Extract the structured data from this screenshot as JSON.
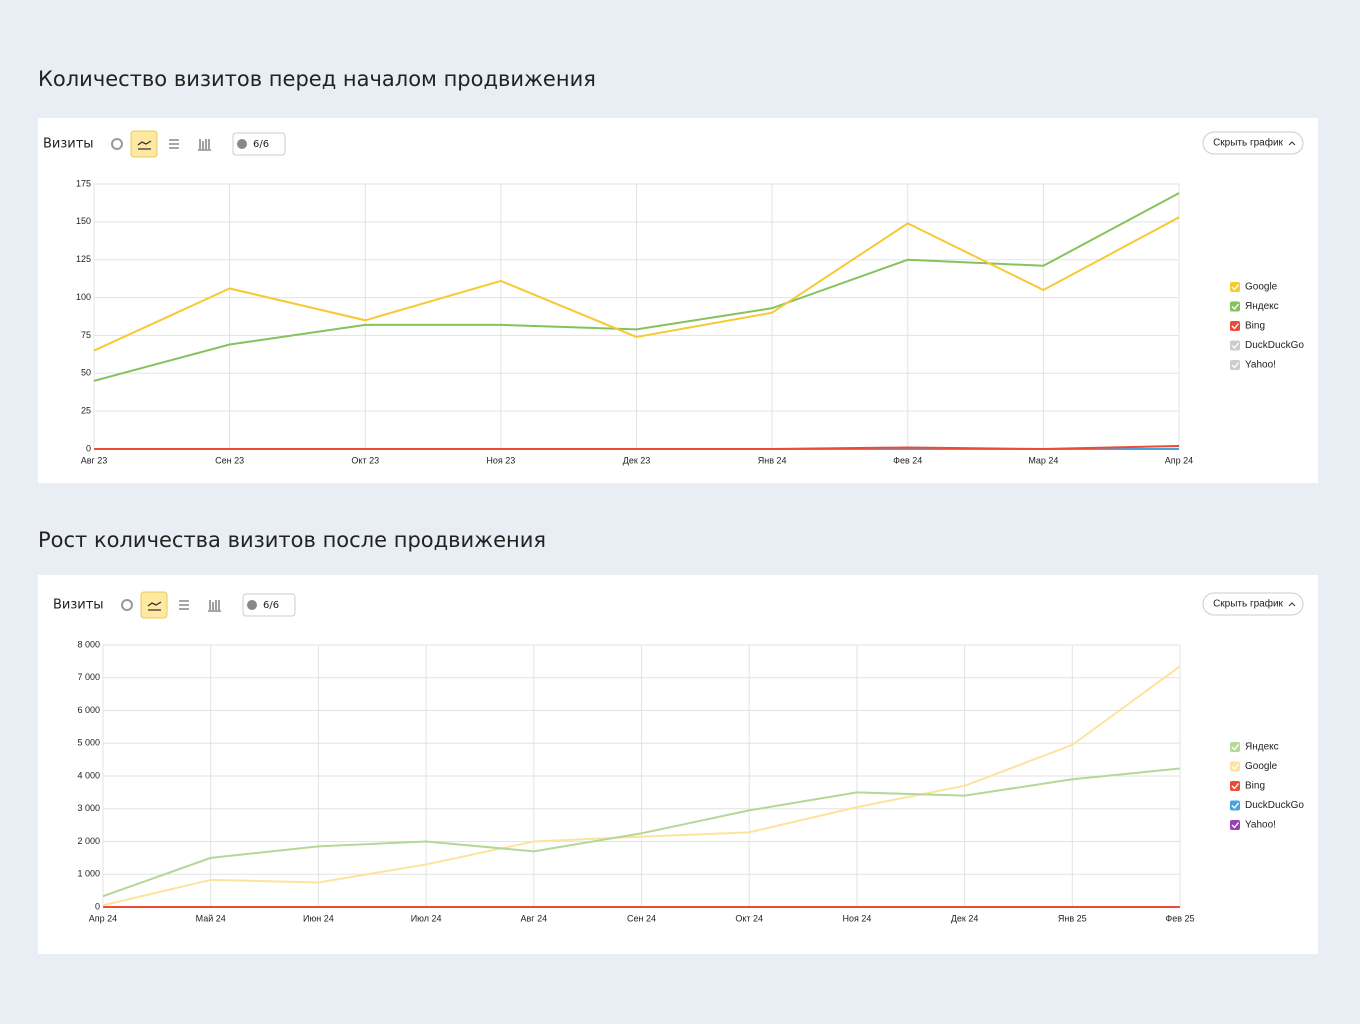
{
  "chart_data": [
    {
      "type": "line",
      "title": "Количество визитов перед началом продвижения",
      "toolbar_label": "Визиты",
      "filter_label": "6/6",
      "hide_button": "Скрыть график",
      "categories": [
        "Авг 23",
        "Сен 23",
        "Окт 23",
        "Ноя 23",
        "Дек 23",
        "Янв 24",
        "Фев 24",
        "Мар 24",
        "Апр 24"
      ],
      "series": [
        {
          "name": "Google",
          "color": "#f7c934",
          "values": [
            65,
            106,
            85,
            111,
            74,
            90,
            149,
            105,
            153
          ]
        },
        {
          "name": "Яндекс",
          "color": "#86c25a",
          "values": [
            45,
            69,
            82,
            82,
            79,
            93,
            125,
            121,
            169
          ]
        },
        {
          "name": "Bing",
          "color": "#ef4a36",
          "values": [
            0,
            0,
            0,
            0,
            0,
            0,
            1,
            0,
            2
          ]
        },
        {
          "name": "DuckDuckGo",
          "color": "#4aa3df",
          "values": [
            0,
            0,
            0,
            0,
            0,
            0,
            0,
            0,
            0
          ],
          "disabled": true
        },
        {
          "name": "Yahoo!",
          "color": "#9b3fb5",
          "values": [
            0,
            0,
            0,
            0,
            0,
            0,
            0,
            0,
            0
          ],
          "disabled": true
        }
      ],
      "ylim": [
        0,
        175
      ],
      "yticks": [
        0,
        25,
        50,
        75,
        100,
        125,
        150,
        175
      ],
      "grid": true,
      "legend": "right"
    },
    {
      "type": "line",
      "title": "Рост количества визитов после продвижения",
      "toolbar_label": "Визиты",
      "filter_label": "6/6",
      "hide_button": "Скрыть график",
      "categories": [
        "Апр 24",
        "Май 24",
        "Июн 24",
        "Июл 24",
        "Авг 24",
        "Сен 24",
        "Окт 24",
        "Ноя 24",
        "Дек 24",
        "Янв 25",
        "Фев 25"
      ],
      "series": [
        {
          "name": "Яндекс",
          "color": "#b3d897",
          "values": [
            330,
            1500,
            1850,
            2000,
            1700,
            2250,
            2950,
            3500,
            3400,
            3900,
            4230
          ]
        },
        {
          "name": "Google",
          "color": "#fde39c",
          "values": [
            50,
            830,
            750,
            1300,
            2000,
            2150,
            2280,
            3050,
            3700,
            4950,
            7350
          ]
        },
        {
          "name": "Bing",
          "color": "#ef4a36",
          "values": [
            0,
            0,
            0,
            0,
            0,
            0,
            0,
            0,
            0,
            0,
            0
          ]
        },
        {
          "name": "DuckDuckGo",
          "color": "#4aa3df",
          "values": [
            0,
            0,
            0,
            0,
            0,
            0,
            0,
            0,
            0,
            0,
            0
          ]
        },
        {
          "name": "Yahoo!",
          "color": "#9b3fb5",
          "values": [
            0,
            0,
            0,
            0,
            0,
            0,
            0,
            0,
            0,
            0,
            0
          ]
        }
      ],
      "ylim": [
        0,
        8000
      ],
      "yticks": [
        0,
        {
          "value": 1000,
          "label": "1 000"
        },
        {
          "value": 2000,
          "label": "2 000"
        },
        {
          "value": 3000,
          "label": "3 000"
        },
        {
          "value": 4000,
          "label": "4 000"
        },
        {
          "value": 5000,
          "label": "5 000"
        },
        {
          "value": 6000,
          "label": "6 000"
        },
        {
          "value": 7000,
          "label": "7 000"
        },
        {
          "value": 8000,
          "label": "8 000"
        }
      ],
      "grid": true,
      "legend": "right"
    }
  ]
}
